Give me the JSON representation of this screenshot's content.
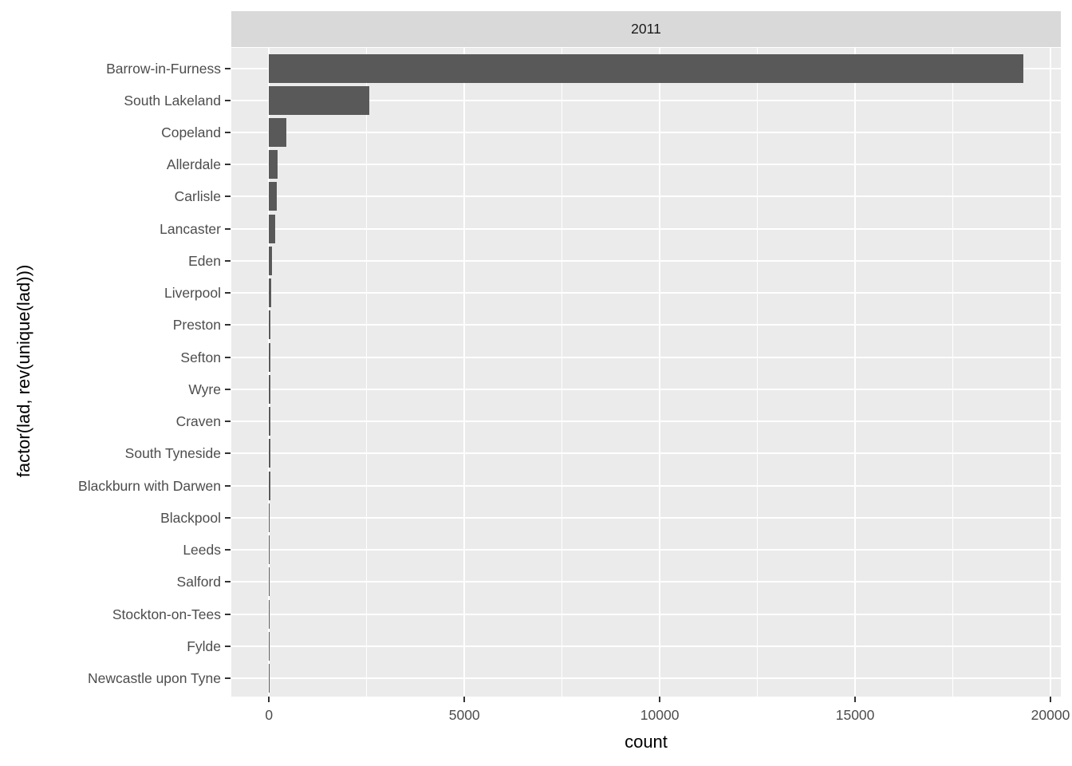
{
  "facet": {
    "label": "2011"
  },
  "chart_data": {
    "type": "bar",
    "orientation": "horizontal",
    "facet_title": "2011",
    "xlabel": "count",
    "ylabel": "factor(lad, rev(unique(lad)))",
    "categories": [
      "Barrow-in-Furness",
      "South Lakeland",
      "Copeland",
      "Allerdale",
      "Carlisle",
      "Lancaster",
      "Eden",
      "Liverpool",
      "Preston",
      "Sefton",
      "Wyre",
      "Craven",
      "South Tyneside",
      "Blackburn with Darwen",
      "Blackpool",
      "Leeds",
      "Salford",
      "Stockton-on-Tees",
      "Fylde",
      "Newcastle upon Tyne"
    ],
    "values": [
      19300,
      2570,
      450,
      225,
      195,
      155,
      80,
      60,
      45,
      40,
      37,
      35,
      30,
      27,
      25,
      8,
      6,
      5,
      4,
      2
    ],
    "x_ticks": [
      0,
      5000,
      10000,
      15000,
      20000
    ],
    "x_minor_ticks": [
      2500,
      7500,
      12500,
      17500
    ],
    "x_range": [
      -965,
      20265
    ],
    "grid": true,
    "legend": "none",
    "colors": {
      "bar": "#595959",
      "panel_bg": "#EBEBEB",
      "strip_bg": "#D9D9D9",
      "gridline": "#FFFFFF",
      "axis_text": "#4D4D4D",
      "title_text": "#000000",
      "strip_text": "#1A1A1A",
      "tick_mark": "#333333"
    }
  }
}
